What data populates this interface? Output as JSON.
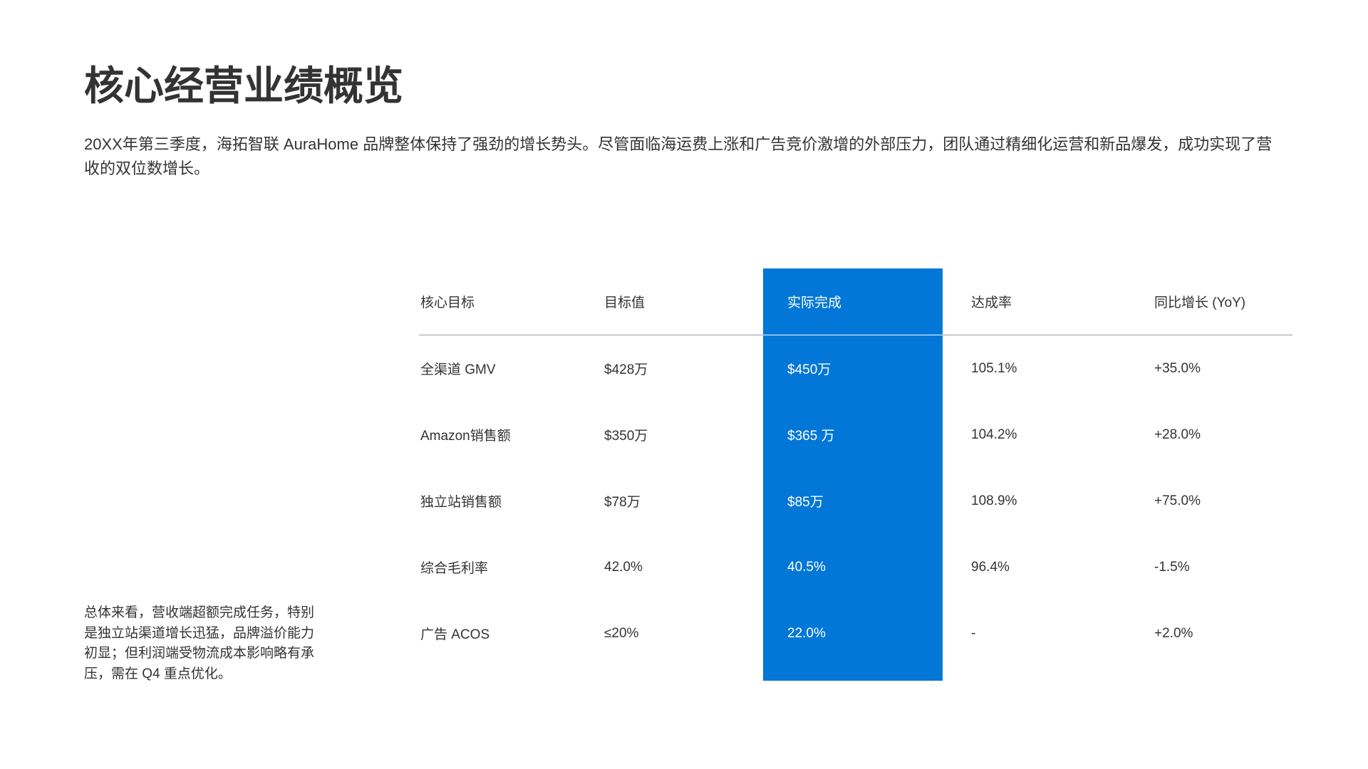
{
  "page": {
    "title": "核心经营业绩概览",
    "intro": "20XX年第三季度，海拓智联 AuraHome 品牌整体保持了强劲的增长势头。尽管面临海运费上涨和广告竞价激增的外部压力，团队通过精细化运营和新品爆发，成功实现了营收的双位数增长。",
    "summary": "总体来看，营收端超额完成任务，特别是独立站渠道增长迅猛，品牌溢价能力初显；但利润端受物流成本影响略有承压，需在 Q4 重点优化。"
  },
  "colors": {
    "accent": "#0277D7",
    "text": "#333333",
    "divider": "#9A9A9A"
  },
  "table": {
    "headers": [
      "核心目标",
      "目标值",
      "实际完成",
      "达成率",
      "同比增长 (YoY)"
    ],
    "rows": [
      [
        "全渠道 GMV",
        "$428万",
        "$450万",
        "105.1%",
        "+35.0%"
      ],
      [
        "Amazon销售额",
        "$350万",
        "$365 万",
        "104.2%",
        "+28.0%"
      ],
      [
        "独立站销售额",
        "$78万",
        "$85万",
        "108.9%",
        "+75.0%"
      ],
      [
        "综合毛利率",
        "42.0%",
        "40.5%",
        "96.4%",
        "-1.5%"
      ],
      [
        "广告 ACOS",
        "≤20%",
        "22.0%",
        "-",
        "+2.0%"
      ]
    ]
  }
}
